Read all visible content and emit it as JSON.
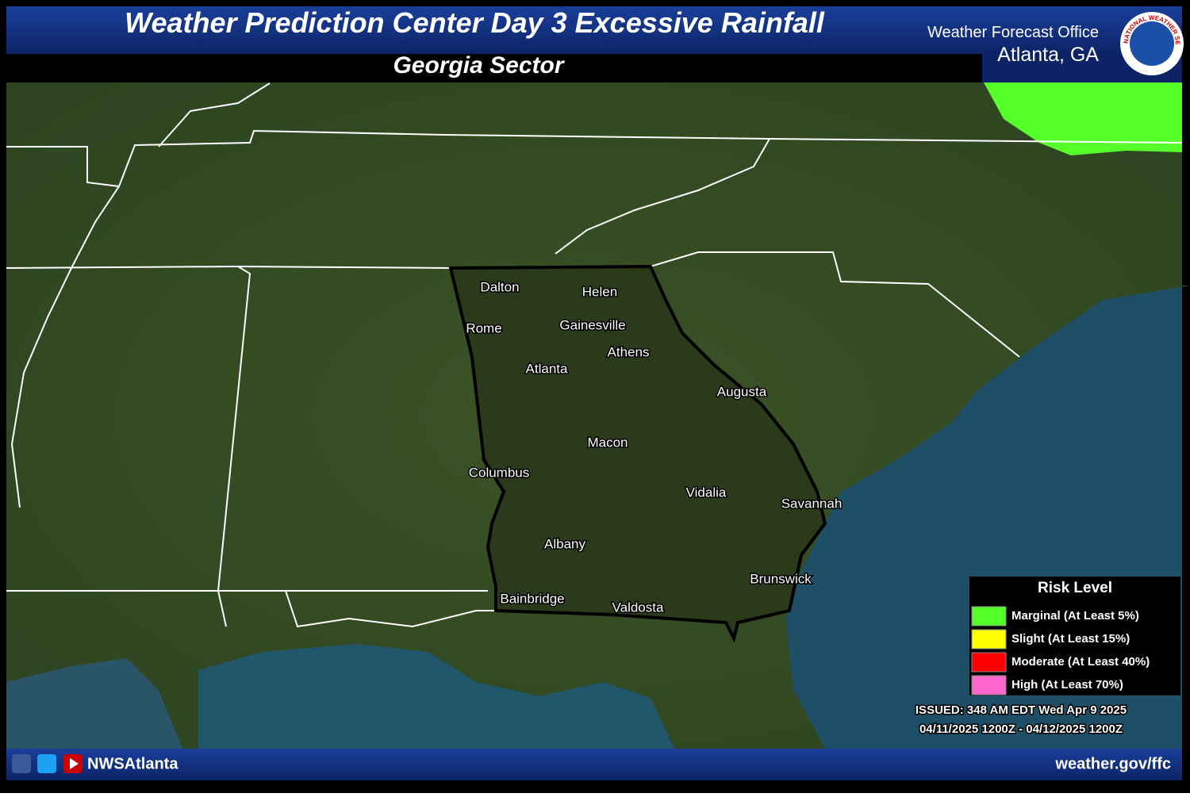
{
  "header": {
    "title": "Weather Prediction Center Day 3 Excessive Rainfall",
    "subtitle": "Georgia Sector",
    "office": "Weather Forecast Office",
    "location": "Atlanta, GA",
    "logo_text": "NATIONAL WEATHER SERVICE"
  },
  "cities": [
    "Dalton",
    "Helen",
    "Rome",
    "Gainesville",
    "Athens",
    "Atlanta",
    "Augusta",
    "Macon",
    "Columbus",
    "Vidalia",
    "Savannah",
    "Albany",
    "Brunswick",
    "Bainbridge",
    "Valdosta"
  ],
  "legend": {
    "title": "Risk Level",
    "items": [
      {
        "label": "Marginal (At Least 5%)",
        "color": "#55ff2a"
      },
      {
        "label": "Slight (At Least 15%)",
        "color": "#ffff00"
      },
      {
        "label": "Moderate (At Least 40%)",
        "color": "#ff0000"
      },
      {
        "label": "High (At Least 70%)",
        "color": "#ff66cc"
      }
    ]
  },
  "issued": "ISSUED: 348 AM EDT Wed Apr 9 2025",
  "valid": "04/11/2025 1200Z - 04/12/2025 1200Z",
  "footer": {
    "handle": "NWSAtlanta",
    "url": "weather.gov/ffc"
  }
}
